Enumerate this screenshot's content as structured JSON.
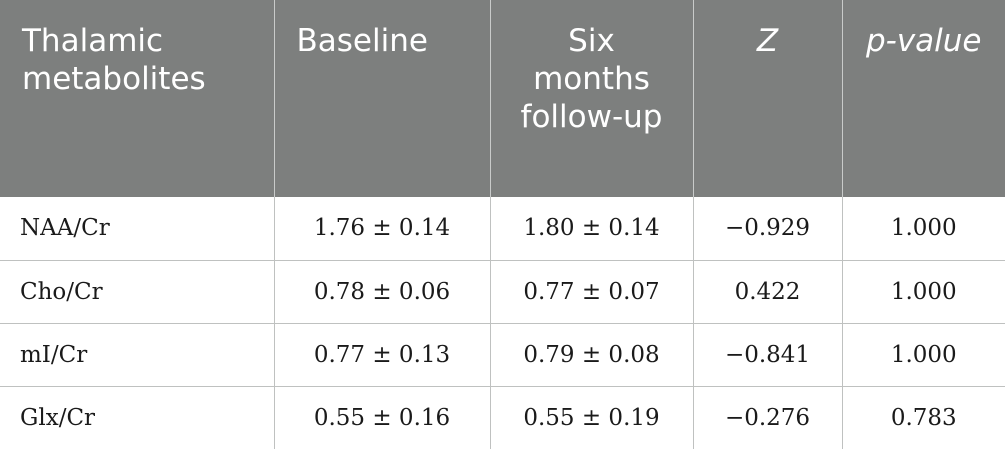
{
  "table": {
    "headers": [
      {
        "label": "Thalamic metabolites"
      },
      {
        "label": "Baseline"
      },
      {
        "label": "Six months follow-up"
      },
      {
        "label": "Z"
      },
      {
        "label": "p-value"
      }
    ],
    "rows": [
      {
        "metabolite": "NAA/Cr",
        "baseline": "1.76 ± 0.14",
        "followup": "1.80 ± 0.14",
        "z": "−0.929",
        "p": "1.000"
      },
      {
        "metabolite": "Cho/Cr",
        "baseline": "0.78 ± 0.06",
        "followup": "0.77 ± 0.07",
        "z": "0.422",
        "p": "1.000"
      },
      {
        "metabolite": "mI/Cr",
        "baseline": "0.77 ± 0.13",
        "followup": "0.79 ± 0.08",
        "z": "−0.841",
        "p": "1.000"
      },
      {
        "metabolite": "Glx/Cr",
        "baseline": "0.55 ± 0.16",
        "followup": "0.55 ± 0.19",
        "z": "−0.276",
        "p": "0.783"
      }
    ]
  },
  "colors": {
    "header_background": "#7d7f7e",
    "header_text": "#ffffff",
    "grid_lines": "#bfc1c0"
  }
}
